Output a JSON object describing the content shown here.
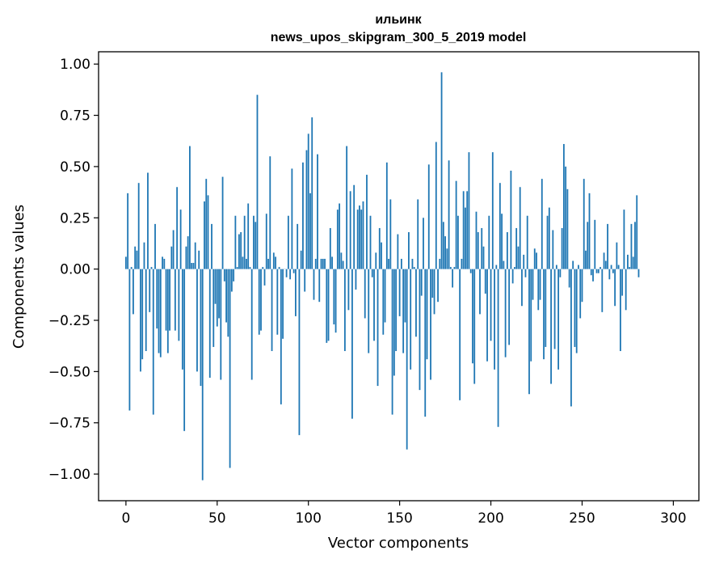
{
  "chart_data": {
    "type": "bar",
    "title_line1": "ильинк",
    "title_line2": "news_upos_skipgram_300_5_2019 model",
    "xlabel": "Vector components",
    "ylabel": "Components values",
    "xlim": [
      -15,
      314
    ],
    "ylim": [
      -1.13,
      1.06
    ],
    "xticks": [
      0,
      50,
      100,
      150,
      200,
      250,
      300
    ],
    "yticks": [
      -1.0,
      -0.75,
      -0.5,
      -0.25,
      0.0,
      0.25,
      0.5,
      0.75,
      1.0
    ],
    "ytick_labels": [
      "−1.00",
      "−0.75",
      "−0.50",
      "−0.25",
      "0.00",
      "0.25",
      "0.50",
      "0.75",
      "1.00"
    ],
    "bar_color": "#1f77b4",
    "values": [
      0.06,
      0.37,
      -0.69,
      0.01,
      -0.22,
      0.11,
      0.09,
      0.42,
      -0.5,
      -0.44,
      0.13,
      -0.4,
      0.47,
      -0.21,
      0.01,
      -0.71,
      0.22,
      -0.29,
      -0.41,
      -0.43,
      0.06,
      0.05,
      -0.3,
      -0.41,
      -0.3,
      0.11,
      0.19,
      -0.3,
      0.4,
      -0.35,
      0.29,
      -0.49,
      -0.79,
      0.11,
      0.16,
      0.6,
      0.03,
      0.03,
      0.13,
      -0.5,
      0.09,
      -0.57,
      -1.03,
      0.33,
      0.44,
      0.36,
      -0.53,
      0.22,
      -0.38,
      -0.17,
      -0.28,
      -0.24,
      -0.54,
      0.45,
      -0.06,
      -0.26,
      -0.33,
      -0.97,
      -0.11,
      -0.06,
      0.26,
      0.01,
      0.17,
      0.18,
      0.06,
      0.26,
      0.05,
      0.32,
      0.01,
      -0.54,
      0.26,
      0.23,
      0.85,
      -0.32,
      -0.3,
      0.01,
      -0.08,
      0.27,
      0.05,
      0.55,
      -0.4,
      0.08,
      0.06,
      -0.32,
      0.01,
      -0.66,
      -0.34,
      0.0,
      -0.04,
      0.26,
      -0.05,
      0.49,
      -0.02,
      -0.23,
      0.22,
      -0.81,
      0.09,
      0.52,
      -0.11,
      0.58,
      0.66,
      0.37,
      0.74,
      -0.15,
      0.05,
      0.56,
      -0.16,
      0.05,
      0.05,
      0.05,
      -0.36,
      -0.35,
      0.2,
      0.06,
      -0.27,
      -0.31,
      0.29,
      0.32,
      0.08,
      0.04,
      -0.4,
      0.6,
      -0.2,
      0.38,
      -0.73,
      0.41,
      -0.1,
      0.29,
      0.31,
      0.29,
      0.33,
      -0.24,
      0.46,
      -0.41,
      0.26,
      -0.04,
      -0.35,
      0.08,
      -0.57,
      0.2,
      0.13,
      -0.32,
      -0.26,
      0.52,
      0.05,
      0.34,
      -0.71,
      -0.52,
      -0.4,
      0.17,
      -0.23,
      0.05,
      -0.41,
      -0.26,
      -0.88,
      0.18,
      -0.49,
      0.05,
      0.01,
      -0.33,
      0.34,
      -0.59,
      -0.13,
      0.25,
      -0.72,
      -0.44,
      0.51,
      -0.54,
      -0.14,
      -0.22,
      0.62,
      -0.16,
      0.05,
      0.96,
      0.23,
      0.16,
      0.1,
      0.53,
      0.01,
      -0.09,
      0.01,
      0.43,
      0.26,
      -0.64,
      0.05,
      0.38,
      0.3,
      0.38,
      0.57,
      -0.02,
      -0.46,
      -0.56,
      0.28,
      0.18,
      -0.22,
      0.2,
      0.11,
      -0.12,
      -0.45,
      0.26,
      -0.35,
      0.57,
      -0.49,
      0.02,
      -0.77,
      0.42,
      0.27,
      0.04,
      -0.43,
      0.18,
      -0.37,
      0.48,
      -0.07,
      0.01,
      0.2,
      0.11,
      0.4,
      -0.18,
      0.07,
      -0.04,
      0.26,
      -0.61,
      -0.45,
      -0.15,
      0.1,
      0.08,
      -0.2,
      -0.15,
      0.44,
      -0.44,
      -0.38,
      0.26,
      0.3,
      -0.56,
      0.19,
      -0.39,
      0.02,
      -0.49,
      -0.04,
      0.2,
      0.61,
      0.5,
      0.39,
      -0.09,
      -0.67,
      0.04,
      -0.38,
      -0.41,
      0.02,
      -0.24,
      -0.16,
      0.44,
      0.09,
      0.23,
      0.37,
      -0.03,
      -0.06,
      0.24,
      -0.02,
      -0.02,
      0.01,
      -0.21,
      0.08,
      0.04,
      0.22,
      -0.05,
      0.02,
      -0.02,
      -0.18,
      0.13,
      0.02,
      -0.4,
      -0.13,
      0.29,
      -0.2,
      0.07,
      0.01,
      0.22,
      0.06,
      0.23,
      0.36,
      -0.04
    ]
  }
}
